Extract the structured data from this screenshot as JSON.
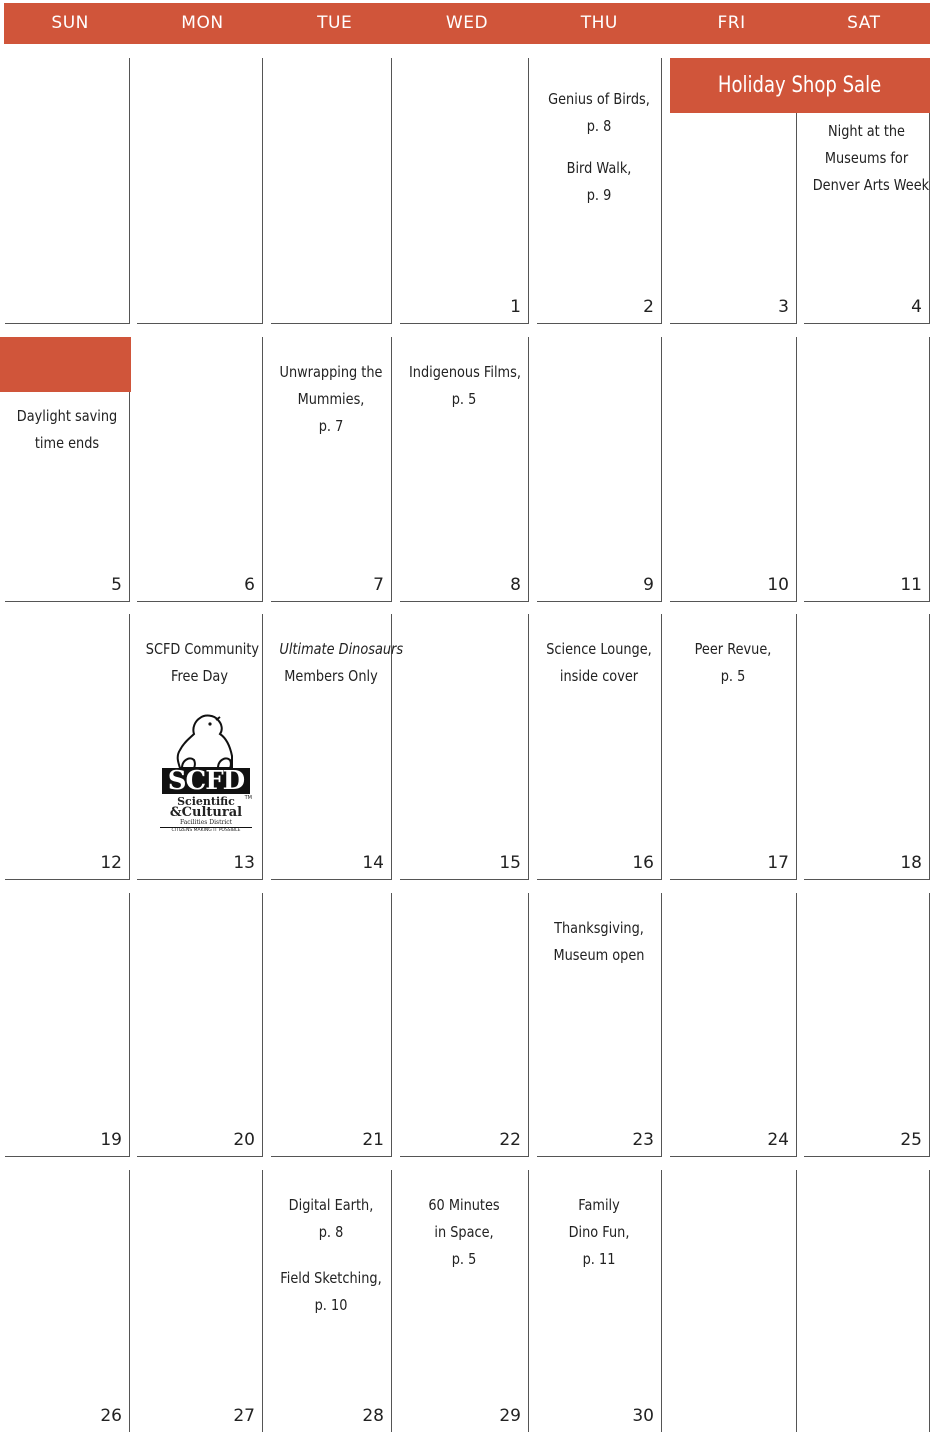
{
  "header": {
    "days": [
      "SUN",
      "MON",
      "TUE",
      "WED",
      "THU",
      "FRI",
      "SAT"
    ]
  },
  "colors": {
    "accent": "#d0553a",
    "rule": "#555555"
  },
  "banners": {
    "holiday_shop": "Holiday Shop Sale"
  },
  "weeks": [
    {
      "days": [
        {
          "num": ""
        },
        {
          "num": ""
        },
        {
          "num": ""
        },
        {
          "num": "1"
        },
        {
          "num": "2",
          "events": [
            [
              "Genius of Birds,",
              "p. 8"
            ],
            [
              "Bird Walk,",
              "p. 9"
            ]
          ]
        },
        {
          "num": "3"
        },
        {
          "num": "4",
          "events": [
            [
              "Night at the",
              "Museums for",
              "Denver Arts Week"
            ]
          ]
        }
      ]
    },
    {
      "days": [
        {
          "num": "5",
          "events": [
            [
              "Daylight saving",
              "time ends"
            ]
          ]
        },
        {
          "num": "6"
        },
        {
          "num": "7",
          "events": [
            [
              "Unwrapping the",
              "Mummies,",
              "p. 7"
            ]
          ]
        },
        {
          "num": "8",
          "events": [
            [
              "Indigenous Films,",
              "p. 5"
            ]
          ]
        },
        {
          "num": "9"
        },
        {
          "num": "10"
        },
        {
          "num": "11"
        }
      ]
    },
    {
      "days": [
        {
          "num": "12"
        },
        {
          "num": "13",
          "events": [
            [
              "SCFD Community",
              "Free Day"
            ]
          ]
        },
        {
          "num": "14",
          "events": [
            [
              "Ultimate Dinosaurs",
              "Members Only"
            ]
          ]
        },
        {
          "num": "15"
        },
        {
          "num": "16",
          "events": [
            [
              "Science Lounge,",
              "inside cover"
            ]
          ]
        },
        {
          "num": "17",
          "events": [
            [
              "Peer Revue,",
              "p. 5"
            ]
          ]
        },
        {
          "num": "18"
        }
      ]
    },
    {
      "days": [
        {
          "num": "19"
        },
        {
          "num": "20"
        },
        {
          "num": "21"
        },
        {
          "num": "22"
        },
        {
          "num": "23",
          "events": [
            [
              "Thanksgiving,",
              "Museum open"
            ]
          ]
        },
        {
          "num": "24"
        },
        {
          "num": "25"
        }
      ]
    },
    {
      "days": [
        {
          "num": "26"
        },
        {
          "num": "27"
        },
        {
          "num": "28",
          "events": [
            [
              "Digital Earth,",
              "p. 8"
            ],
            [
              "Field Sketching,",
              "p. 10"
            ]
          ]
        },
        {
          "num": "29",
          "events": [
            [
              "60 Minutes",
              "in Space,",
              "p. 5"
            ]
          ]
        },
        {
          "num": "30",
          "events": [
            [
              "Family",
              "Dino Fun,",
              "p. 11"
            ]
          ]
        },
        {
          "num": ""
        },
        {
          "num": ""
        }
      ]
    }
  ],
  "scfd_logo": {
    "mark": "SCFD",
    "tm": "TM",
    "line1": "Scientific",
    "line2": "&Cultural",
    "line3": "Facilities District",
    "tagline": "CITIZENS MAKING IT POSSIBLE"
  }
}
